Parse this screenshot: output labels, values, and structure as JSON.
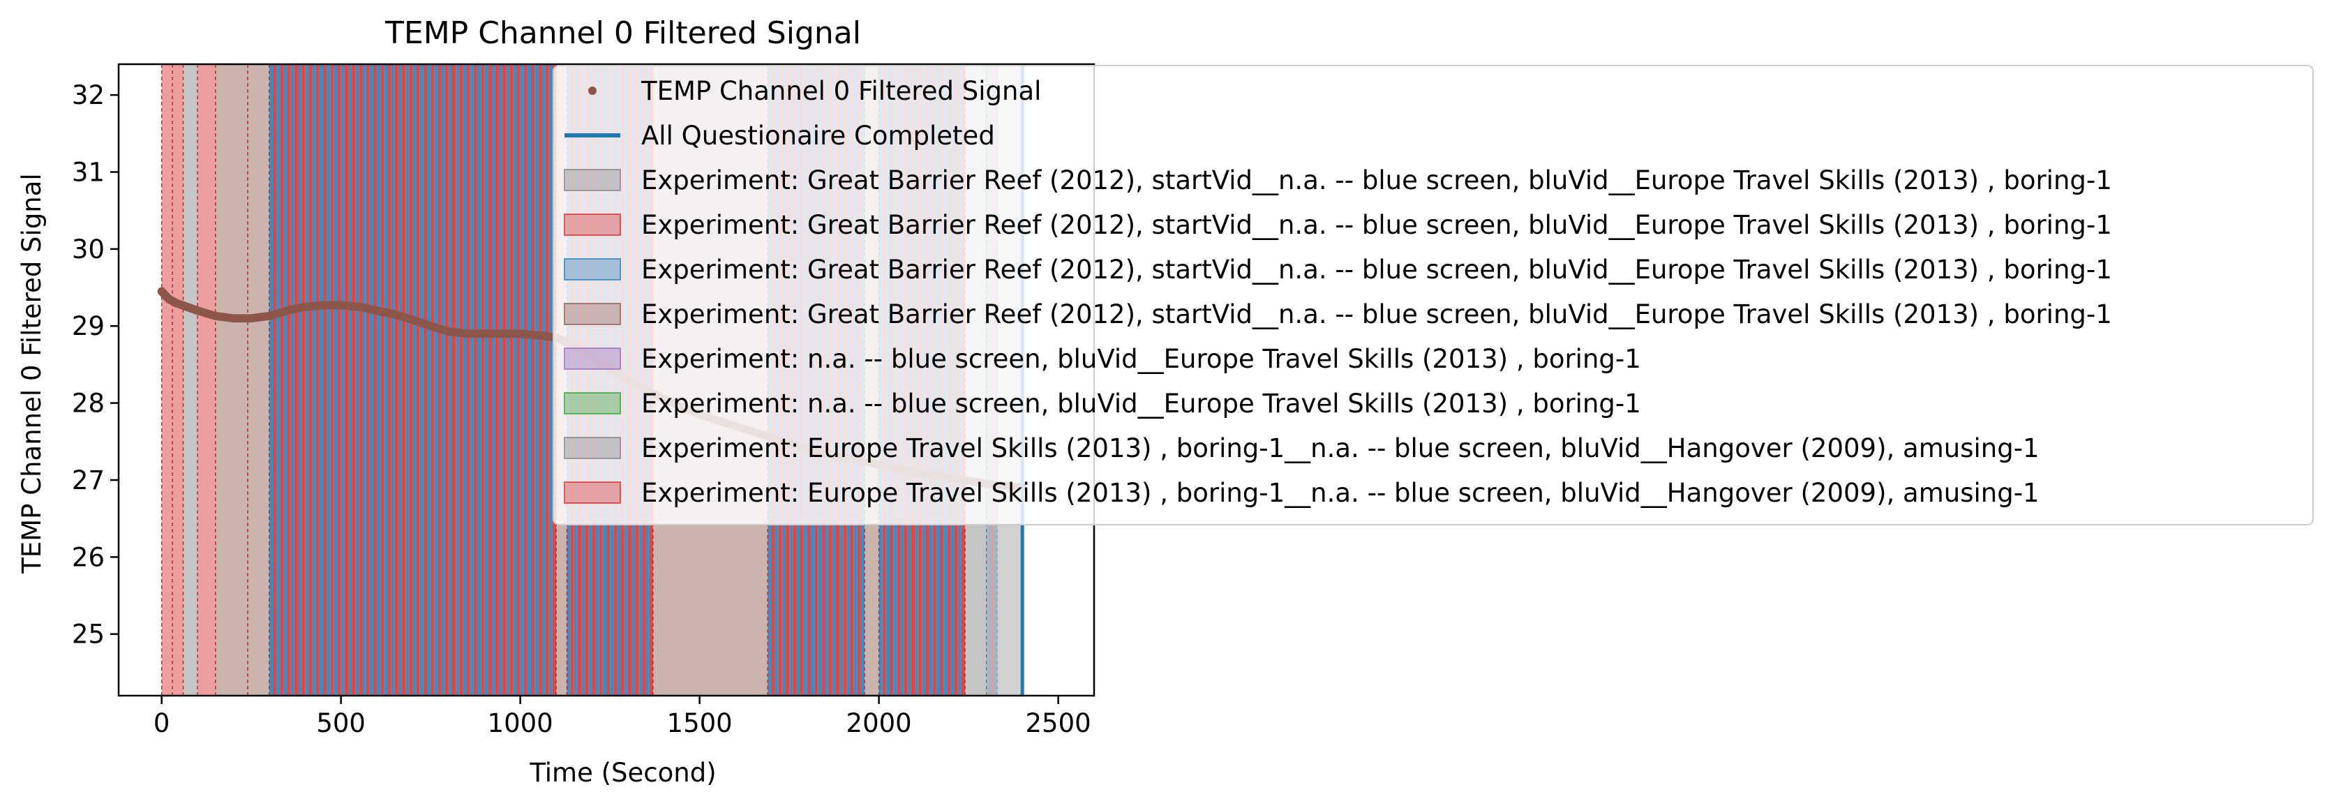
{
  "chart_data": {
    "type": "scatter",
    "title": "TEMP Channel 0 Filtered Signal",
    "xlabel": "Time (Second)",
    "ylabel": "TEMP Channel 0 Filtered Signal",
    "xlim": [
      -120,
      2600
    ],
    "ylim": [
      24.2,
      32.4
    ],
    "xticks": [
      0,
      500,
      1000,
      1500,
      2000,
      2500
    ],
    "yticks": [
      25,
      26,
      27,
      28,
      29,
      30,
      31,
      32
    ],
    "grid": false,
    "legend_position": "top-right, extending beyond the axes",
    "series": [
      {
        "name": "TEMP Channel 0 Filtered Signal",
        "kind": "scatter",
        "color": "#8c564b",
        "x": [
          0,
          20,
          40,
          70,
          100,
          150,
          200,
          250,
          300,
          350,
          400,
          450,
          500,
          550,
          600,
          650,
          700,
          750,
          800,
          850,
          900,
          950,
          1000,
          1050,
          1100,
          1150,
          1200,
          1300,
          1400,
          1500,
          1600,
          1700,
          1800,
          1900,
          2000,
          2100,
          2200,
          2300,
          2400
        ],
        "y": [
          29.45,
          29.35,
          29.3,
          29.25,
          29.2,
          29.13,
          29.1,
          29.1,
          29.13,
          29.2,
          29.25,
          29.27,
          29.27,
          29.25,
          29.2,
          29.15,
          29.08,
          29.0,
          28.93,
          28.9,
          28.9,
          28.9,
          28.9,
          28.88,
          28.85,
          28.75,
          28.6,
          28.3,
          28.05,
          27.85,
          27.7,
          27.55,
          27.4,
          27.3,
          27.2,
          27.1,
          27.03,
          26.95,
          26.9
        ]
      },
      {
        "name": "All Questionaire Completed",
        "kind": "vertical-line",
        "color": "#1f77b4",
        "x": [
          2400
        ]
      }
    ],
    "legend": [
      {
        "label": "TEMP Channel 0 Filtered Signal",
        "kind": "marker",
        "color": "#8c564b"
      },
      {
        "label": "All Questionaire Completed",
        "kind": "line",
        "color": "#1f77b4"
      },
      {
        "label": "Experiment: Great Barrier Reef (2012), startVid__n.a. -- blue screen, bluVid__Europe Travel Skills (2013) , boring-1",
        "kind": "patch",
        "color": "#7f7f7f"
      },
      {
        "label": "Experiment: Great Barrier Reef (2012), startVid__n.a. -- blue screen, bluVid__Europe Travel Skills (2013) , boring-1",
        "kind": "patch",
        "color": "#d62728"
      },
      {
        "label": "Experiment: Great Barrier Reef (2012), startVid__n.a. -- blue screen, bluVid__Europe Travel Skills (2013) , boring-1",
        "kind": "patch",
        "color": "#1f77b4"
      },
      {
        "label": "Experiment: Great Barrier Reef (2012), startVid__n.a. -- blue screen, bluVid__Europe Travel Skills (2013) , boring-1",
        "kind": "patch",
        "color": "#8c564b"
      },
      {
        "label": "Experiment: n.a. -- blue screen, bluVid__Europe Travel Skills (2013) , boring-1",
        "kind": "patch",
        "color": "#9467bd"
      },
      {
        "label": "Experiment: n.a. -- blue screen, bluVid__Europe Travel Skills (2013) , boring-1",
        "kind": "patch",
        "color": "#2ca02c"
      },
      {
        "label": "Experiment: Europe Travel Skills (2013) , boring-1__n.a. -- blue screen, bluVid__Hangover (2009), amusing-1",
        "kind": "patch",
        "color": "#7f7f7f"
      },
      {
        "label": "Experiment: Europe Travel Skills (2013) , boring-1__n.a. -- blue screen, bluVid__Hangover (2009), amusing-1",
        "kind": "patch",
        "color": "#d62728"
      }
    ],
    "spans": {
      "start": 0,
      "end": 2400,
      "colors": [
        "#7f7f7f",
        "#d62728",
        "#1f77b4",
        "#8c564b",
        "#9467bd",
        "#2ca02c"
      ],
      "dense_stripe_colors": [
        "#1f77b4",
        "#d62728"
      ],
      "regions": [
        {
          "x0": 0,
          "x1": 30,
          "color": "#d62728"
        },
        {
          "x0": 30,
          "x1": 60,
          "color": "#d62728"
        },
        {
          "x0": 60,
          "x1": 100,
          "color": "#7f7f7f"
        },
        {
          "x0": 100,
          "x1": 150,
          "color": "#d62728"
        },
        {
          "x0": 150,
          "x1": 240,
          "color": "#8c564b"
        },
        {
          "x0": 240,
          "x1": 300,
          "color": "#8c564b"
        },
        {
          "x0": 300,
          "x1": 1100,
          "color": "stripes"
        },
        {
          "x0": 1100,
          "x1": 1130,
          "color": "#8c564b"
        },
        {
          "x0": 1130,
          "x1": 1370,
          "color": "stripes"
        },
        {
          "x0": 1370,
          "x1": 1690,
          "color": "#8c564b"
        },
        {
          "x0": 1690,
          "x1": 1960,
          "color": "stripes"
        },
        {
          "x0": 1960,
          "x1": 2000,
          "color": "#8c564b"
        },
        {
          "x0": 2000,
          "x1": 2240,
          "color": "stripes"
        },
        {
          "x0": 2240,
          "x1": 2300,
          "color": "#7f7f7f"
        },
        {
          "x0": 2300,
          "x1": 2330,
          "color": "stripes"
        },
        {
          "x0": 2330,
          "x1": 2400,
          "color": "#7f7f7f"
        }
      ]
    }
  }
}
